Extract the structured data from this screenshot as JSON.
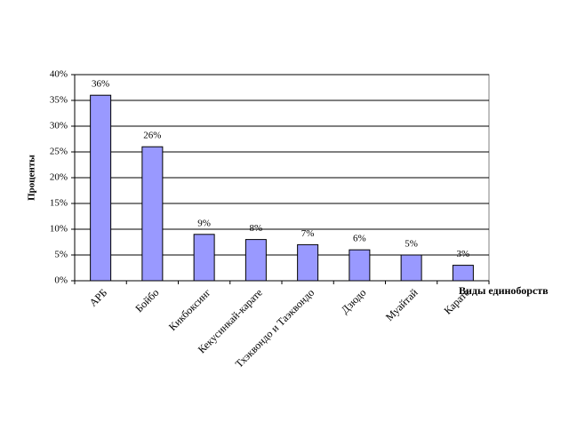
{
  "chart_data": {
    "type": "bar",
    "x_label": "Виды единоборств",
    "y_label": "Проценты",
    "categories": [
      "АРБ",
      "Бойбо",
      "Кикбоксинг",
      "Кекусинкай-карате",
      "Тхэквондо и Таэквондо",
      "Дзюдо",
      "Муайтай",
      "Карате"
    ],
    "values": [
      36,
      26,
      9,
      8,
      7,
      6,
      5,
      3
    ],
    "value_labels": [
      "36%",
      "26%",
      "9%",
      "8%",
      "7%",
      "6%",
      "5%",
      "3%"
    ],
    "color": "#9999ff",
    "ylim": [
      0,
      40
    ],
    "yticks": [
      {
        "value": 0,
        "label": "0%"
      },
      {
        "value": 5,
        "label": "5%"
      },
      {
        "value": 10,
        "label": "10%"
      },
      {
        "value": 15,
        "label": "15%"
      },
      {
        "value": 20,
        "label": "20%"
      },
      {
        "value": 25,
        "label": "25%"
      },
      {
        "value": 30,
        "label": "30%"
      },
      {
        "value": 35,
        "label": "35%"
      },
      {
        "value": 40,
        "label": "40%"
      }
    ],
    "grid": true
  }
}
